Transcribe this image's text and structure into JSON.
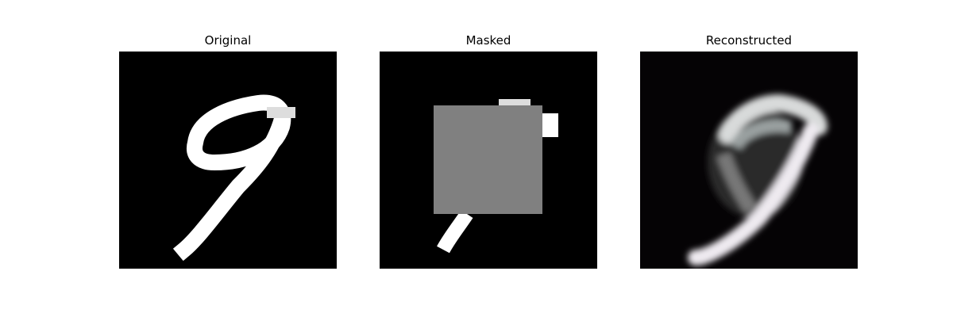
{
  "figure": {
    "panels": [
      {
        "title": "Original"
      },
      {
        "title": "Masked"
      },
      {
        "title": "Reconstructed"
      }
    ]
  },
  "colors": {
    "background": "#000000",
    "mask": "#808080",
    "digit": "#ffffff"
  }
}
